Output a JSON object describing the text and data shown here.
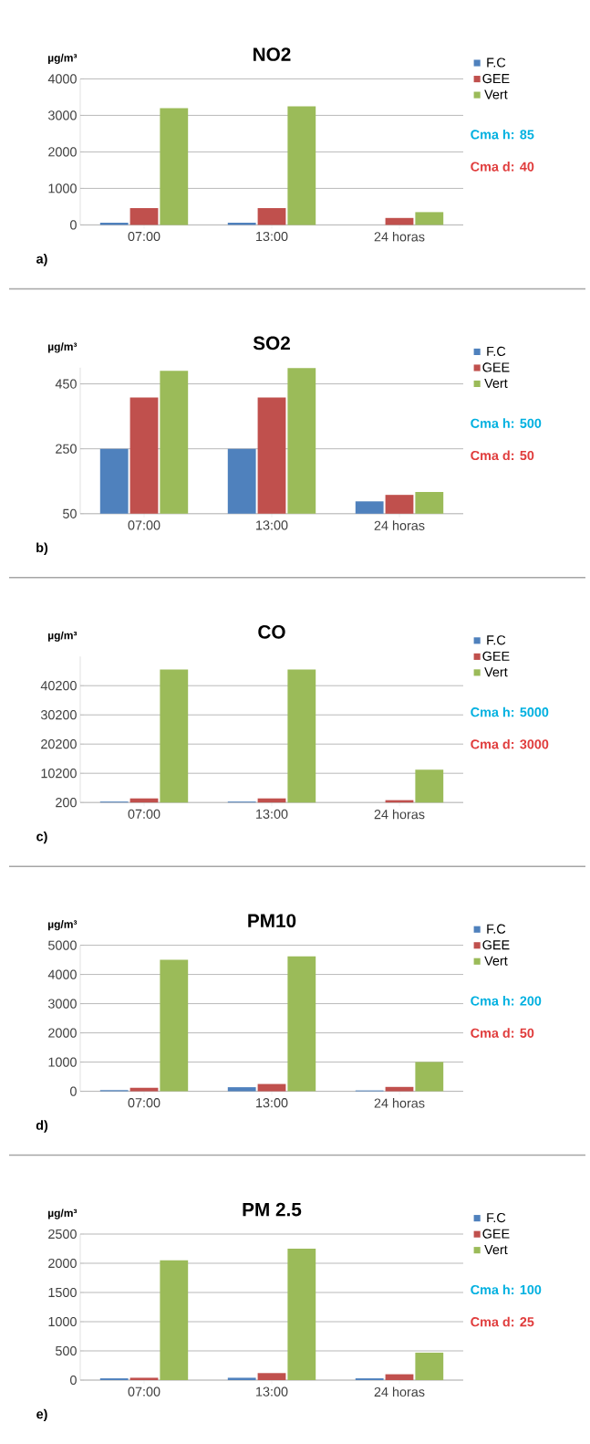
{
  "chart_data": [
    {
      "type": "bar",
      "title": "NO2",
      "ylabel": "µg/m³",
      "categories": [
        "07:00",
        "13:00",
        "24 horas"
      ],
      "series": [
        {
          "name": "F.C",
          "color": "#4f81bd",
          "values": [
            60,
            60,
            null
          ]
        },
        {
          "name": "GEE",
          "color": "#c0504d",
          "values": [
            460,
            460,
            190
          ]
        },
        {
          "name": "Vert",
          "color": "#9bbb59",
          "values": [
            3200,
            3250,
            350
          ]
        }
      ],
      "ylim": [
        0,
        4000
      ],
      "yticks": [
        0,
        1000,
        2000,
        3000,
        4000
      ],
      "grid": "y",
      "legend": "top right",
      "annotations": [
        "Cma h: 85",
        "Cma d: 40",
        "a)"
      ]
    },
    {
      "type": "bar",
      "title": "SO2",
      "ylabel": "µg/m³",
      "categories": [
        "07:00",
        "13:00",
        "24 horas"
      ],
      "series": [
        {
          "name": "F.C",
          "color": "#4f81bd",
          "values": [
            250,
            250,
            88
          ]
        },
        {
          "name": "GEE",
          "color": "#c0504d",
          "values": [
            408,
            408,
            108
          ]
        },
        {
          "name": "Vert",
          "color": "#9bbb59",
          "values": [
            490,
            499,
            117
          ]
        }
      ],
      "ylim": [
        50,
        500
      ],
      "yticks": [
        50,
        250,
        450
      ],
      "grid": "y",
      "legend": "top right",
      "annotations": [
        "Cma h: 500",
        "Cma d: 50",
        "b)"
      ]
    },
    {
      "type": "bar",
      "title": "CO",
      "ylabel": "µg/m³",
      "categories": [
        "07:00",
        "13:00",
        "24 horas"
      ],
      "series": [
        {
          "name": "F.C",
          "color": "#4f81bd",
          "values": [
            500,
            500,
            null
          ]
        },
        {
          "name": "GEE",
          "color": "#c0504d",
          "values": [
            1600,
            1600,
            1000
          ]
        },
        {
          "name": "Vert",
          "color": "#9bbb59",
          "values": [
            45700,
            45700,
            11400
          ]
        }
      ],
      "ylim": [
        200,
        50200
      ],
      "yticks": [
        200,
        10200,
        20200,
        30200,
        40200
      ],
      "grid": "y",
      "legend": "top right",
      "annotations": [
        "Cma h: 5000",
        "Cma d: 3000",
        "c)"
      ]
    },
    {
      "type": "bar",
      "title": "PM10",
      "ylabel": "µg/m³",
      "categories": [
        "07:00",
        "13:00",
        "24 horas"
      ],
      "series": [
        {
          "name": "F.C",
          "color": "#4f81bd",
          "values": [
            40,
            140,
            30
          ]
        },
        {
          "name": "GEE",
          "color": "#c0504d",
          "values": [
            120,
            250,
            150
          ]
        },
        {
          "name": "Vert",
          "color": "#9bbb59",
          "values": [
            4500,
            4620,
            1000
          ]
        }
      ],
      "ylim": [
        0,
        5000
      ],
      "yticks": [
        0,
        1000,
        2000,
        3000,
        4000,
        5000
      ],
      "grid": "y",
      "legend": "top right",
      "annotations": [
        "Cma h: 200",
        "Cma d: 50",
        "d)"
      ]
    },
    {
      "type": "bar",
      "title": "PM 2.5",
      "ylabel": "µg/m³",
      "categories": [
        "07:00",
        "13:00",
        "24 horas"
      ],
      "series": [
        {
          "name": "F.C",
          "color": "#4f81bd",
          "values": [
            30,
            40,
            30
          ]
        },
        {
          "name": "GEE",
          "color": "#c0504d",
          "values": [
            40,
            120,
            100
          ]
        },
        {
          "name": "Vert",
          "color": "#9bbb59",
          "values": [
            2050,
            2250,
            470
          ]
        }
      ],
      "ylim": [
        0,
        2500
      ],
      "yticks": [
        0,
        500,
        1000,
        1500,
        2000,
        2500
      ],
      "grid": "y",
      "legend": "top right",
      "annotations": [
        "Cma h: 100",
        "Cma d: 25",
        "e)"
      ]
    }
  ]
}
